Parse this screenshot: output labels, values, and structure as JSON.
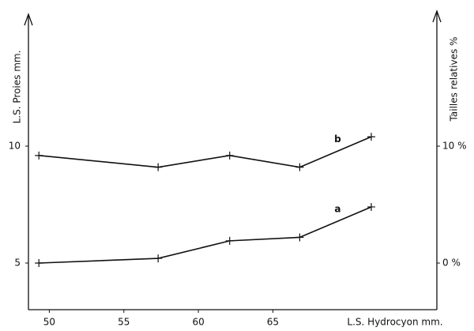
{
  "chart_data": {
    "type": "line",
    "x_label": "L.S. Hydrocyon mm.",
    "y_label": "L.S. Proies mm.",
    "y2_label": "Tailles relatives %",
    "xlim": [
      48.6,
      76
    ],
    "xticks": [
      50,
      55,
      60,
      65
    ],
    "ylim": [
      3,
      15.5
    ],
    "yticks": [
      5,
      10
    ],
    "y2lim": [
      -4,
      21
    ],
    "y2ticks": [
      {
        "value": 0,
        "label": "0 %"
      },
      {
        "value": 10,
        "label": "10 %"
      }
    ],
    "series": [
      {
        "name": "b",
        "color": "#111111",
        "x": [
          49.3,
          57.3,
          62.1,
          66.8,
          71.6
        ],
        "values": [
          9.6,
          9.1,
          9.6,
          9.1,
          10.4
        ]
      },
      {
        "name": "a",
        "color": "#111111",
        "x": [
          49.3,
          57.3,
          62.1,
          66.8,
          71.6
        ],
        "values": [
          5.0,
          5.2,
          5.95,
          6.1,
          7.4
        ]
      }
    ]
  }
}
